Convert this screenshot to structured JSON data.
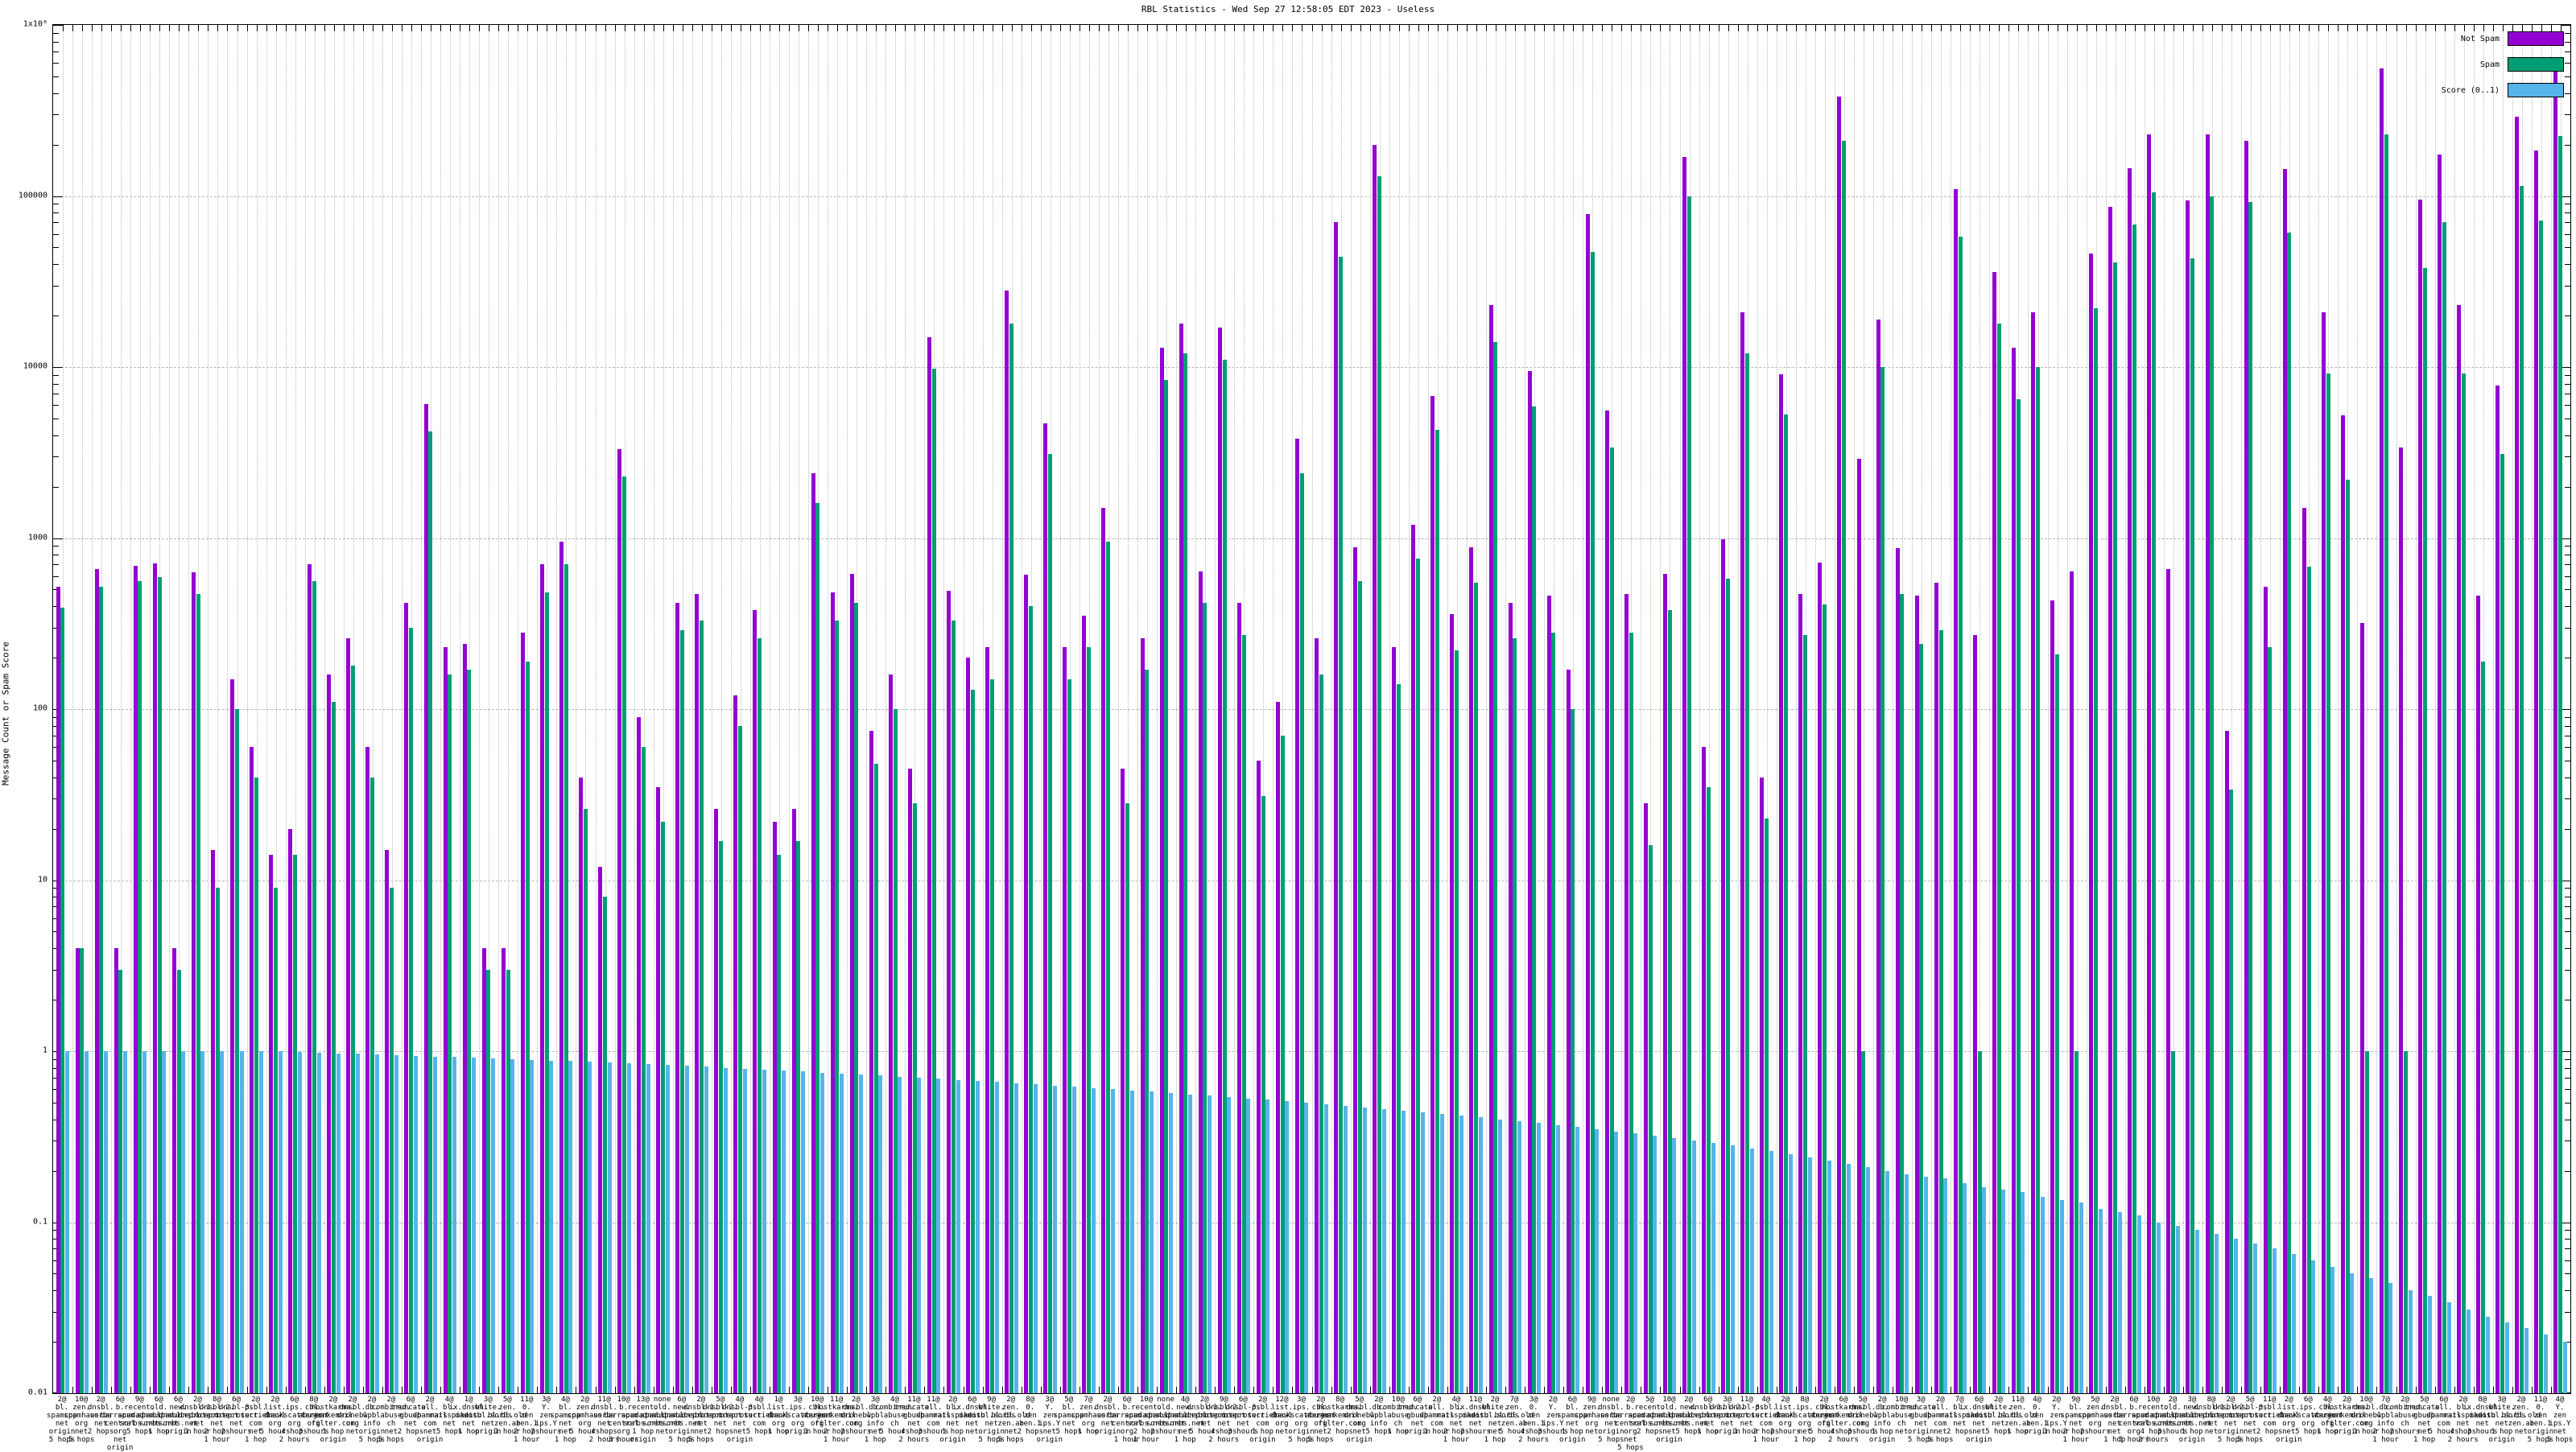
{
  "chart_data": {
    "type": "bar",
    "title": "RBL Statistics - Wed Sep 27 12:58:05 EDT 2023 - Useless",
    "ylabel": "Message Count or Spam Score",
    "xlabel": "",
    "y_scale": "log",
    "ylim": [
      0.01,
      1000000
    ],
    "grid": true,
    "legend_position": "top-right",
    "y_tick_labels": [
      "1x10⁶",
      "100000",
      "10000",
      "1000",
      "100",
      "10",
      "1",
      "0.1",
      "0.01"
    ],
    "series": [
      {
        "name": "Not Spam",
        "color": "#9400d3",
        "values": [
          520,
          4,
          660,
          4,
          690,
          710,
          4,
          630,
          15,
          150,
          60,
          14,
          20,
          700,
          160,
          260,
          60,
          15,
          420,
          6100,
          230,
          240,
          4,
          4,
          280,
          700,
          950,
          40,
          12,
          3300,
          90,
          35,
          420,
          470,
          26,
          120,
          380,
          22,
          26,
          2400,
          480,
          620,
          75,
          160,
          45,
          15000,
          490,
          200,
          230,
          28000,
          610,
          4700,
          230,
          350,
          1500,
          45,
          260,
          13000,
          18000,
          640,
          17000,
          420,
          50,
          110,
          3800,
          260,
          70000,
          880,
          200000,
          230,
          1200,
          6800,
          360,
          880,
          23000,
          420,
          9500,
          460,
          170,
          78000,
          5600,
          470,
          28,
          620,
          170000,
          60,
          980,
          21000,
          40,
          9100,
          470,
          720,
          380000,
          2900,
          19000,
          870,
          460,
          550,
          110000,
          270,
          36000,
          13000,
          21000,
          430,
          640,
          46000,
          86000,
          145000,
          230000,
          660,
          94000,
          230000,
          75,
          210000,
          520,
          144000,
          1500,
          21000,
          5200,
          320,
          560000,
          3400,
          95000,
          175000,
          23000,
          460,
          7800,
          290000,
          185000,
          560000
        ]
      },
      {
        "name": "Spam",
        "color": "#009e73",
        "values": [
          390,
          4,
          520,
          3,
          560,
          590,
          3,
          470,
          9,
          100,
          40,
          9,
          14,
          560,
          110,
          180,
          40,
          9,
          300,
          4200,
          160,
          170,
          3,
          3,
          190,
          480,
          700,
          26,
          8,
          2300,
          60,
          22,
          290,
          330,
          17,
          80,
          260,
          14,
          17,
          1600,
          330,
          420,
          48,
          100,
          28,
          9800,
          330,
          130,
          150,
          18000,
          400,
          3100,
          150,
          230,
          950,
          28,
          170,
          8400,
          12000,
          420,
          11000,
          270,
          31,
          70,
          2400,
          160,
          44000,
          560,
          130000,
          140,
          760,
          4300,
          220,
          550,
          14000,
          260,
          5900,
          280,
          100,
          47000,
          3400,
          280,
          16,
          380,
          100000,
          35,
          580,
          12000,
          23,
          5300,
          270,
          410,
          210000,
          1,
          10000,
          470,
          240,
          290,
          58000,
          1,
          18000,
          6500,
          10000,
          210,
          1,
          22000,
          41000,
          68000,
          105000,
          1,
          43000,
          100000,
          34,
          92000,
          230,
          61000,
          680,
          9200,
          2200,
          1,
          230000,
          1,
          38000,
          70000,
          9200,
          190,
          3100,
          115000,
          72000,
          225000
        ]
      },
      {
        "name": "Score (0..1)",
        "color": "#56b4e9",
        "values": [
          1,
          1,
          1,
          1,
          1,
          1,
          1,
          1,
          1,
          1,
          1,
          1,
          0.99,
          0.98,
          0.97,
          0.97,
          0.96,
          0.95,
          0.94,
          0.93,
          0.93,
          0.92,
          0.91,
          0.9,
          0.89,
          0.88,
          0.88,
          0.87,
          0.86,
          0.85,
          0.84,
          0.83,
          0.82,
          0.81,
          0.8,
          0.79,
          0.78,
          0.77,
          0.76,
          0.75,
          0.74,
          0.73,
          0.72,
          0.71,
          0.7,
          0.69,
          0.68,
          0.67,
          0.66,
          0.65,
          0.64,
          0.63,
          0.62,
          0.61,
          0.6,
          0.59,
          0.58,
          0.57,
          0.56,
          0.55,
          0.54,
          0.53,
          0.52,
          0.51,
          0.5,
          0.49,
          0.48,
          0.47,
          0.46,
          0.45,
          0.44,
          0.43,
          0.42,
          0.41,
          0.4,
          0.39,
          0.38,
          0.37,
          0.36,
          0.35,
          0.34,
          0.33,
          0.32,
          0.31,
          0.3,
          0.29,
          0.28,
          0.27,
          0.26,
          0.25,
          0.24,
          0.23,
          0.22,
          0.21,
          0.2,
          0.19,
          0.185,
          0.18,
          0.17,
          0.16,
          0.155,
          0.15,
          0.14,
          0.135,
          0.13,
          0.12,
          0.115,
          0.11,
          0.1,
          0.095,
          0.09,
          0.085,
          0.08,
          0.075,
          0.07,
          0.065,
          0.06,
          0.055,
          0.05,
          0.047,
          0.044,
          0.04,
          0.037,
          0.034,
          0.031,
          0.028,
          0.026,
          0.024,
          0.022,
          0.02
        ]
      }
    ],
    "categories": [
      "2@\nbl.\nspamcop\nnet\norigin\n5 hops",
      "10@\nzen.\nspamhaus\norg\nnet\n5 hops",
      "2@\ndnsbl.\nsorbs\nnet\n2 hops",
      "6@\nb.\nbarracuda\ncentral\norg\nnet\norigin",
      "9@\nrecent.\nspam.dnsbl\nsorbs.net\n5 hops",
      "6@\nold.\nspam.dnsbl\nsorbs.net\n1 hop",
      "6@\nnew.\nspam.dnsbl\nsorbs.net\norigin",
      "2@\ndnsbl-1.\nuceprotect\nnet\n1 hour",
      "8@\ndnsbl-2.\nuceprotect\nnet\n2 hops\n1 hour",
      "6@\ndnsbl-3.\nuceprotect\nnet\n2 hours",
      "2@\npsbl.\nsurriel\ncom\nnet\n1 hop",
      "2@\nlist.\ndnswl\norg\n5 hours",
      "6@\nips.\nbackscatterer\norg\n4 hops\n2 hours",
      "8@\ncbl.\nabuseat\norg\n3 hours",
      "2@\nhostkarma.\njunkemail\nfilter.com\n1 hop\norigin",
      "2@\ndnsbl.\ndronebl\norg\nnet",
      "2@\ndb.\nwpbl\ninfo\norigin\n5 hops",
      "2@\ncombined.\nabuse\nch\nnet\n5 hops",
      "6@\ntruncate.\ngbudb\nnet\n2 hops",
      "2@\nall.\nspamrats\ncom\nnet\norigin",
      "4@\nbl.\nmailspike\nnet\n5 hops",
      "1@\nix.dnsbl.\nmanitu\nnet\n1 hop",
      "3@\nwhite.\ndnsbl.sorbs\nnet\norigin",
      "5@\nzen.\nbl.bl.old\nzen.ab\n1 hour",
      "11@\n0.\nzen\nzen.1\n2 hops\n1 hour",
      "3@\nY.\nzen\nips.Y\n2 hours",
      "4@\nbl.\nspamcop\nnet\nnet\n1 hop",
      "2@\nzen.\nspamhaus\norg\n5 hours",
      "11@\ndnsbl.\nsorbs\nnet\n4 hops\n2 hours",
      "10@\nb.\nbarracuda\ncentral\norg\n3 hours",
      "13@\nrecent.\nspam.dnsbl\nsorbs.net\n1 hop\norigin",
      "none\nold.\nspam.dnsbl\nsorbs.net\nnet",
      "6@\nnew.\nspam.dnsbl\nsorbs.net\norigin\n5 hops",
      "2@\ndnsbl-1.\nuceprotect\nnet\nnet\n5 hops",
      "5@\ndnsbl-2.\nuceprotect\nnet\n2 hops",
      "4@\ndnsbl-3.\nuceprotect\nnet\nnet\norigin",
      "4@\npsbl.\nsurriel\ncom\n5 hops",
      "1@\nlist.\ndnswl\norg\n1 hop",
      "3@\nips.\nbackscatterer\norg\norigin",
      "10@\ncbl.\nabuseat\norg\n1 hour",
      "11@\nhostkarma.\njunkemail\nfilter.com\n2 hops\n1 hour",
      "2@\ndnsbl.\ndronebl\norg\n2 hours",
      "3@\ndb.\nwpbl\ninfo\nnet\n1 hop",
      "4@\ncombined.\nabuse\nch\n5 hours",
      "11@\ntruncate.\ngbudb\nnet\n4 hops\n2 hours",
      "11@\nall.\nspamrats\ncom\n3 hours",
      "2@\nbl.\nmailspike\nnet\n1 hop\norigin",
      "6@\nix.dnsbl.\nmanitu\nnet\nnet",
      "9@\nwhite.\ndnsbl.sorbs\nnet\norigin\n5 hops",
      "2@\nzen.\nbl.bl.old\nzen.ab\nnet\n5 hops",
      "8@\n0.\nzen\nzen.1\n2 hops",
      "3@\nY.\nzen\nips.Y\nnet\norigin",
      "5@\nbl.\nspamcop\nnet\n5 hops",
      "7@\nzen.\nspamhaus\norg\n1 hop",
      "2@\ndnsbl.\nsorbs\nnet\norigin",
      "6@\nb.\nbarracuda\ncentral\norg\n1 hour",
      "10@\nrecent.\nspam.dnsbl\nsorbs.net\n2 hops\n1 hour",
      "none\nold.\nspam.dnsbl\nsorbs.net\n2 hours",
      "4@\nnew.\nspam.dnsbl\nsorbs.net\nnet\n1 hop",
      "2@\ndnsbl-1.\nuceprotect\nnet\n5 hours",
      "9@\ndnsbl-2.\nuceprotect\nnet\n4 hops\n2 hours",
      "6@\ndnsbl-3.\nuceprotect\nnet\n3 hours",
      "2@\npsbl.\nsurriel\ncom\n1 hop\norigin",
      "12@\nlist.\ndnswl\norg\nnet",
      "3@\nips.\nbackscatterer\norg\norigin\n5 hops",
      "2@\ncbl.\nabuseat\norg\nnet\n5 hops",
      "8@\nhostkarma.\njunkemail\nfilter.com\n2 hops",
      "5@\ndnsbl.\ndronebl\norg\nnet\norigin",
      "2@\ndb.\nwpbl\ninfo\n5 hops",
      "10@\ncombined.\nabuse\nch\n1 hop",
      "6@\ntruncate.\ngbudb\nnet\norigin",
      "2@\nall.\nspamrats\ncom\n1 hour",
      "4@\nbl.\nmailspike\nnet\n2 hops\n1 hour",
      "11@\nix.dnsbl.\nmanitu\nnet\n2 hours",
      "2@\nwhite.\ndnsbl.sorbs\nnet\nnet\n1 hop",
      "7@\nzen.\nbl.bl.old\nzen.ab\n5 hours",
      "3@\n0.\nzen\nzen.1\n4 hops\n2 hours",
      "2@\nY.\nzen\nips.Y\n3 hours",
      "6@\nbl.\nspamcop\nnet\n1 hop\norigin",
      "9@\nzen.\nspamhaus\norg\nnet",
      "none\ndnsbl.\nsorbs\nnet\norigin\n5 hops",
      "2@\nb.\nbarracuda\ncentral\norg\nnet\n5 hops",
      "5@\nrecent.\nspam.dnsbl\nsorbs.net\n2 hops",
      "10@\nold.\nspam.dnsbl\nsorbs.net\nnet\norigin",
      "2@\nnew.\nspam.dnsbl\nsorbs.net\n5 hops",
      "6@\ndnsbl-1.\nuceprotect\nnet\n1 hop",
      "3@\ndnsbl-2.\nuceprotect\nnet\norigin",
      "11@\ndnsbl-3.\nuceprotect\nnet\n1 hour",
      "4@\npsbl.\nsurriel\ncom\n2 hops\n1 hour",
      "2@\nlist.\ndnswl\norg\n2 hours",
      "8@\nips.\nbackscatterer\norg\nnet\n1 hop",
      "2@\ncbl.\nabuseat\norg\n5 hours",
      "6@\nhostkarma.\njunkemail\nfilter.com\n4 hops\n2 hours",
      "5@\ndnsbl.\ndronebl\norg\n3 hours",
      "2@\ndb.\nwpbl\ninfo\n1 hop\norigin",
      "10@\ncombined.\nabuse\nch\nnet",
      "3@\ntruncate.\ngbudb\nnet\norigin\n5 hops",
      "2@\nall.\nspamrats\ncom\nnet\n5 hops",
      "7@\nbl.\nmailspike\nnet\n2 hops",
      "6@\nix.dnsbl.\nmanitu\nnet\nnet\norigin",
      "2@\nwhite.\ndnsbl.sorbs\nnet\n5 hops",
      "11@\nzen.\nbl.bl.old\nzen.ab\n1 hop",
      "4@\n0.\nzen\nzen.1\norigin",
      "2@\nY.\nzen\nips.Y\n1 hour",
      "9@\nbl.\nspamcop\nnet\n2 hops\n1 hour",
      "5@\nzen.\nspamhaus\norg\n2 hours",
      "2@\ndnsbl.\nsorbs\nnet\nnet\n1 hop",
      "6@\nb.\nbarracuda\ncentral\norg\n5 hours",
      "10@\nrecent.\nspam.dnsbl\nsorbs.net\n4 hops\n2 hours",
      "2@\nold.\nspam.dnsbl\nsorbs.net\n3 hours",
      "3@\nnew.\nspam.dnsbl\nsorbs.net\n1 hop\norigin",
      "8@\ndnsbl-1.\nuceprotect\nnet\nnet",
      "2@\ndnsbl-2.\nuceprotect\nnet\norigin\n5 hops",
      "5@\ndnsbl-3.\nuceprotect\nnet\nnet\n5 hops",
      "11@\npsbl.\nsurriel\ncom\n2 hops",
      "2@\nlist.\ndnswl\norg\nnet\norigin",
      "6@\nips.\nbackscatterer\norg\n5 hops",
      "4@\ncbl.\nabuseat\norg\n1 hop",
      "2@\nhostkarma.\njunkemail\nfilter.com\norigin",
      "10@\ndnsbl.\ndronebl\norg\n1 hour",
      "7@\ndb.\nwpbl\ninfo\n2 hops\n1 hour",
      "2@\ncombined.\nabuse\nch\n2 hours",
      "5@\ntruncate.\ngbudb\nnet\nnet\n1 hop",
      "6@\nall.\nspamrats\ncom\n5 hours",
      "2@\nbl.\nmailspike\nnet\n4 hops\n2 hours",
      "8@\nix.dnsbl.\nmanitu\nnet\n3 hours",
      "3@\nwhite.\ndnsbl.sorbs\nnet\n1 hop\norigin",
      "2@\nzen.\nbl.bl.old\nzen.ab\nnet",
      "11@\n0.\nzen\nzen.1\norigin\n5 hops",
      "4@\nY.\nzen\nips.Y\nnet\n5 hops"
    ]
  }
}
